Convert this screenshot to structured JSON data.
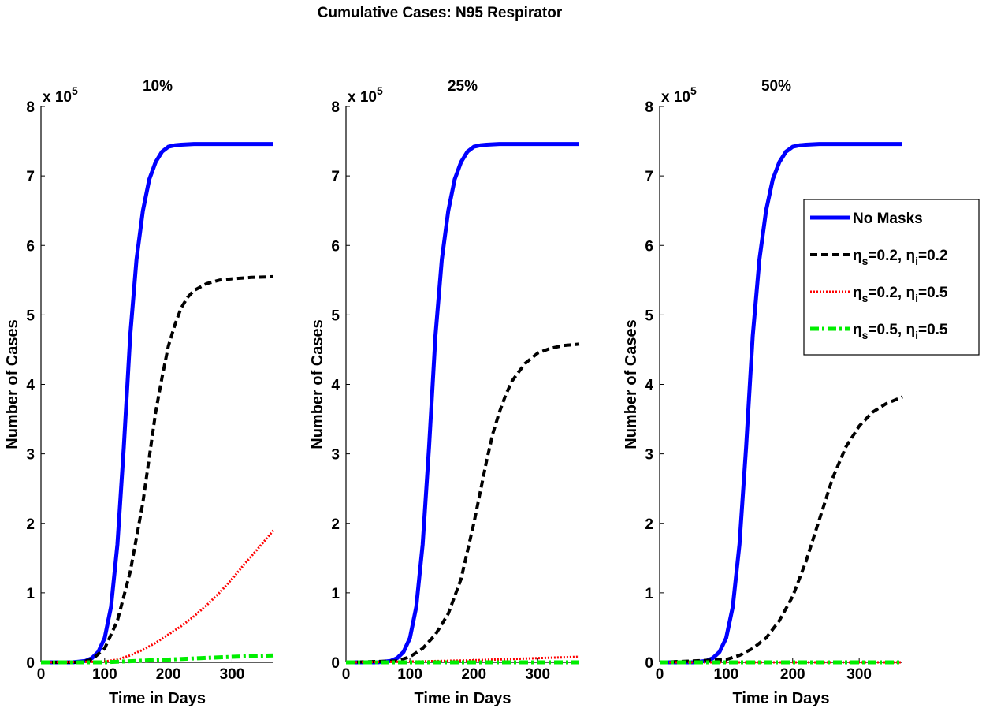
{
  "figure": {
    "title": "Cumulative Cases: N95 Respirator"
  },
  "legend": {
    "position": "right",
    "entries": [
      {
        "series": "none",
        "label": "No Masks"
      },
      {
        "series": "s02i02",
        "parts": [
          {
            "t": "η"
          },
          {
            "t": "s",
            "sub": true
          },
          {
            "t": "=0.2, "
          },
          {
            "t": "η"
          },
          {
            "t": "i",
            "sub": true
          },
          {
            "t": "=0.2"
          }
        ]
      },
      {
        "series": "s02i05",
        "parts": [
          {
            "t": "η"
          },
          {
            "t": "s",
            "sub": true
          },
          {
            "t": "=0.2, "
          },
          {
            "t": "η"
          },
          {
            "t": "i",
            "sub": true
          },
          {
            "t": "=0.5"
          }
        ]
      },
      {
        "series": "s05i05",
        "parts": [
          {
            "t": "η"
          },
          {
            "t": "s",
            "sub": true
          },
          {
            "t": "=0.5, "
          },
          {
            "t": "η"
          },
          {
            "t": "i",
            "sub": true
          },
          {
            "t": "=0.5"
          }
        ]
      }
    ]
  },
  "series_styles": {
    "none": {
      "color": "#0000ff",
      "dash": "none",
      "width": 5
    },
    "s02i02": {
      "color": "#000000",
      "dash": "9,5",
      "width": 4
    },
    "s02i05": {
      "color": "#ff0000",
      "dash": "2,2",
      "width": 3
    },
    "s05i05": {
      "color": "#00ee00",
      "dash": "11,4,3,4",
      "width": 5
    }
  },
  "chart_data": [
    {
      "type": "line",
      "title": "10%",
      "xlabel": "Time in Days",
      "ylabel": "Number of Cases",
      "y_multiplier": "x 10",
      "y_exponent": "5",
      "xlim": [
        0,
        365
      ],
      "ylim": [
        0,
        8
      ],
      "xticks": [
        0,
        100,
        200,
        300
      ],
      "yticks": [
        0,
        1,
        2,
        3,
        4,
        5,
        6,
        7,
        8
      ],
      "grid": false,
      "series": [
        {
          "key": "none",
          "x": [
            0,
            50,
            70,
            80,
            90,
            100,
            110,
            120,
            130,
            140,
            150,
            160,
            170,
            180,
            190,
            200,
            210,
            220,
            240,
            260,
            300,
            365
          ],
          "y": [
            0.0,
            0.0,
            0.02,
            0.06,
            0.15,
            0.35,
            0.8,
            1.7,
            3.1,
            4.7,
            5.8,
            6.5,
            6.95,
            7.2,
            7.35,
            7.42,
            7.44,
            7.45,
            7.46,
            7.46,
            7.46,
            7.46
          ]
        },
        {
          "key": "s02i02",
          "x": [
            0,
            60,
            80,
            100,
            120,
            140,
            160,
            170,
            180,
            190,
            200,
            210,
            220,
            230,
            240,
            260,
            280,
            300,
            330,
            365
          ],
          "y": [
            0.0,
            0.0,
            0.04,
            0.2,
            0.6,
            1.3,
            2.3,
            2.95,
            3.6,
            4.1,
            4.55,
            4.85,
            5.1,
            5.25,
            5.35,
            5.45,
            5.5,
            5.52,
            5.54,
            5.55
          ]
        },
        {
          "key": "s02i05",
          "x": [
            0,
            100,
            120,
            140,
            160,
            180,
            200,
            220,
            240,
            260,
            280,
            300,
            320,
            340,
            365
          ],
          "y": [
            0.0,
            0.01,
            0.04,
            0.1,
            0.18,
            0.28,
            0.4,
            0.52,
            0.66,
            0.82,
            1.0,
            1.2,
            1.42,
            1.63,
            1.9
          ]
        },
        {
          "key": "s05i05",
          "x": [
            0,
            100,
            150,
            200,
            250,
            300,
            365
          ],
          "y": [
            0.0,
            0.0,
            0.02,
            0.04,
            0.06,
            0.08,
            0.1
          ]
        }
      ]
    },
    {
      "type": "line",
      "title": "25%",
      "xlabel": "Time in Days",
      "ylabel": "Number of Cases",
      "y_multiplier": "x 10",
      "y_exponent": "5",
      "xlim": [
        0,
        365
      ],
      "ylim": [
        0,
        8
      ],
      "xticks": [
        0,
        100,
        200,
        300
      ],
      "yticks": [
        0,
        1,
        2,
        3,
        4,
        5,
        6,
        7,
        8
      ],
      "grid": false,
      "series": [
        {
          "key": "none",
          "x": [
            0,
            50,
            70,
            80,
            90,
            100,
            110,
            120,
            130,
            140,
            150,
            160,
            170,
            180,
            190,
            200,
            210,
            220,
            240,
            260,
            300,
            365
          ],
          "y": [
            0.0,
            0.0,
            0.02,
            0.06,
            0.15,
            0.35,
            0.8,
            1.7,
            3.1,
            4.7,
            5.8,
            6.5,
            6.95,
            7.2,
            7.35,
            7.42,
            7.44,
            7.45,
            7.46,
            7.46,
            7.46,
            7.46
          ]
        },
        {
          "key": "s02i02",
          "x": [
            0,
            80,
            100,
            120,
            140,
            160,
            180,
            200,
            210,
            220,
            230,
            240,
            250,
            260,
            280,
            300,
            320,
            340,
            365
          ],
          "y": [
            0.0,
            0.02,
            0.08,
            0.2,
            0.4,
            0.7,
            1.2,
            2.0,
            2.45,
            2.9,
            3.3,
            3.6,
            3.85,
            4.05,
            4.3,
            4.45,
            4.52,
            4.56,
            4.58
          ]
        },
        {
          "key": "s02i05",
          "x": [
            0,
            100,
            200,
            300,
            365
          ],
          "y": [
            0.0,
            0.01,
            0.03,
            0.06,
            0.08
          ]
        },
        {
          "key": "s05i05",
          "x": [
            0,
            365
          ],
          "y": [
            0.0,
            0.0
          ]
        }
      ]
    },
    {
      "type": "line",
      "title": "50%",
      "xlabel": "Time in Days",
      "ylabel": "Number of Cases",
      "y_multiplier": "x 10",
      "y_exponent": "5",
      "xlim": [
        0,
        365
      ],
      "ylim": [
        0,
        8
      ],
      "xticks": [
        0,
        100,
        200,
        300
      ],
      "yticks": [
        0,
        1,
        2,
        3,
        4,
        5,
        6,
        7,
        8
      ],
      "grid": false,
      "series": [
        {
          "key": "none",
          "x": [
            0,
            50,
            70,
            80,
            90,
            100,
            110,
            120,
            130,
            140,
            150,
            160,
            170,
            180,
            190,
            200,
            210,
            220,
            240,
            260,
            300,
            365
          ],
          "y": [
            0.0,
            0.0,
            0.02,
            0.06,
            0.15,
            0.35,
            0.8,
            1.7,
            3.1,
            4.7,
            5.8,
            6.5,
            6.95,
            7.2,
            7.35,
            7.42,
            7.44,
            7.45,
            7.46,
            7.46,
            7.46,
            7.46
          ]
        },
        {
          "key": "s02i02",
          "x": [
            0,
            100,
            120,
            140,
            160,
            180,
            200,
            220,
            240,
            250,
            260,
            280,
            300,
            320,
            340,
            365
          ],
          "y": [
            0.0,
            0.04,
            0.1,
            0.2,
            0.35,
            0.6,
            0.95,
            1.45,
            2.05,
            2.35,
            2.65,
            3.1,
            3.4,
            3.6,
            3.72,
            3.82
          ]
        },
        {
          "key": "s02i05",
          "x": [
            0,
            365
          ],
          "y": [
            0.0,
            0.0
          ]
        },
        {
          "key": "s05i05",
          "x": [
            0,
            365
          ],
          "y": [
            0.0,
            0.0
          ]
        }
      ]
    }
  ]
}
